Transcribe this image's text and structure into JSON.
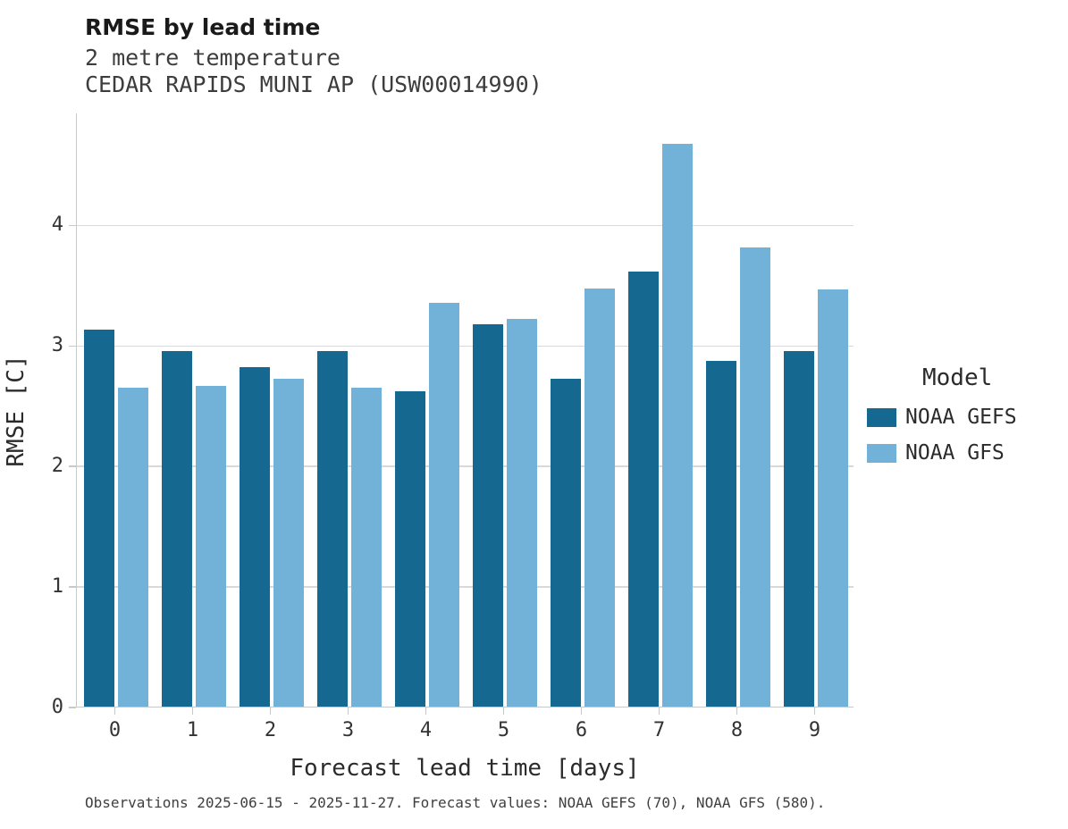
{
  "header": {
    "title": "RMSE by lead time",
    "subtitle1": "2 metre temperature",
    "subtitle2": "CEDAR RAPIDS MUNI AP (USW00014990)"
  },
  "chart_data": {
    "type": "bar",
    "title": "RMSE by lead time",
    "subtitle": "2 metre temperature — CEDAR RAPIDS MUNI AP (USW00014990)",
    "categories": [
      0,
      1,
      2,
      3,
      4,
      5,
      6,
      7,
      8,
      9
    ],
    "series": [
      {
        "name": "NOAA GEFS",
        "color": "#15688f",
        "values": [
          3.13,
          2.95,
          2.82,
          2.95,
          2.62,
          3.17,
          2.72,
          3.61,
          2.87,
          2.95
        ]
      },
      {
        "name": "NOAA GFS",
        "color": "#72b1d8",
        "values": [
          2.65,
          2.66,
          2.72,
          2.65,
          3.35,
          3.22,
          3.47,
          4.67,
          3.81,
          3.46
        ]
      }
    ],
    "xlabel": "Forecast lead time [days]",
    "ylabel": "RMSE [C]",
    "ylim": [
      0,
      4.93
    ],
    "yticks": [
      0,
      1,
      2,
      3,
      4
    ],
    "grid": true,
    "legend_title": "Model",
    "legend_position": "right"
  },
  "legend": {
    "title": "Model",
    "entries": [
      "NOAA GEFS",
      "NOAA GFS"
    ]
  },
  "footer": {
    "note": "Observations 2025-06-15 - 2025-11-27. Forecast values: NOAA GEFS (70), NOAA GFS (580)."
  }
}
